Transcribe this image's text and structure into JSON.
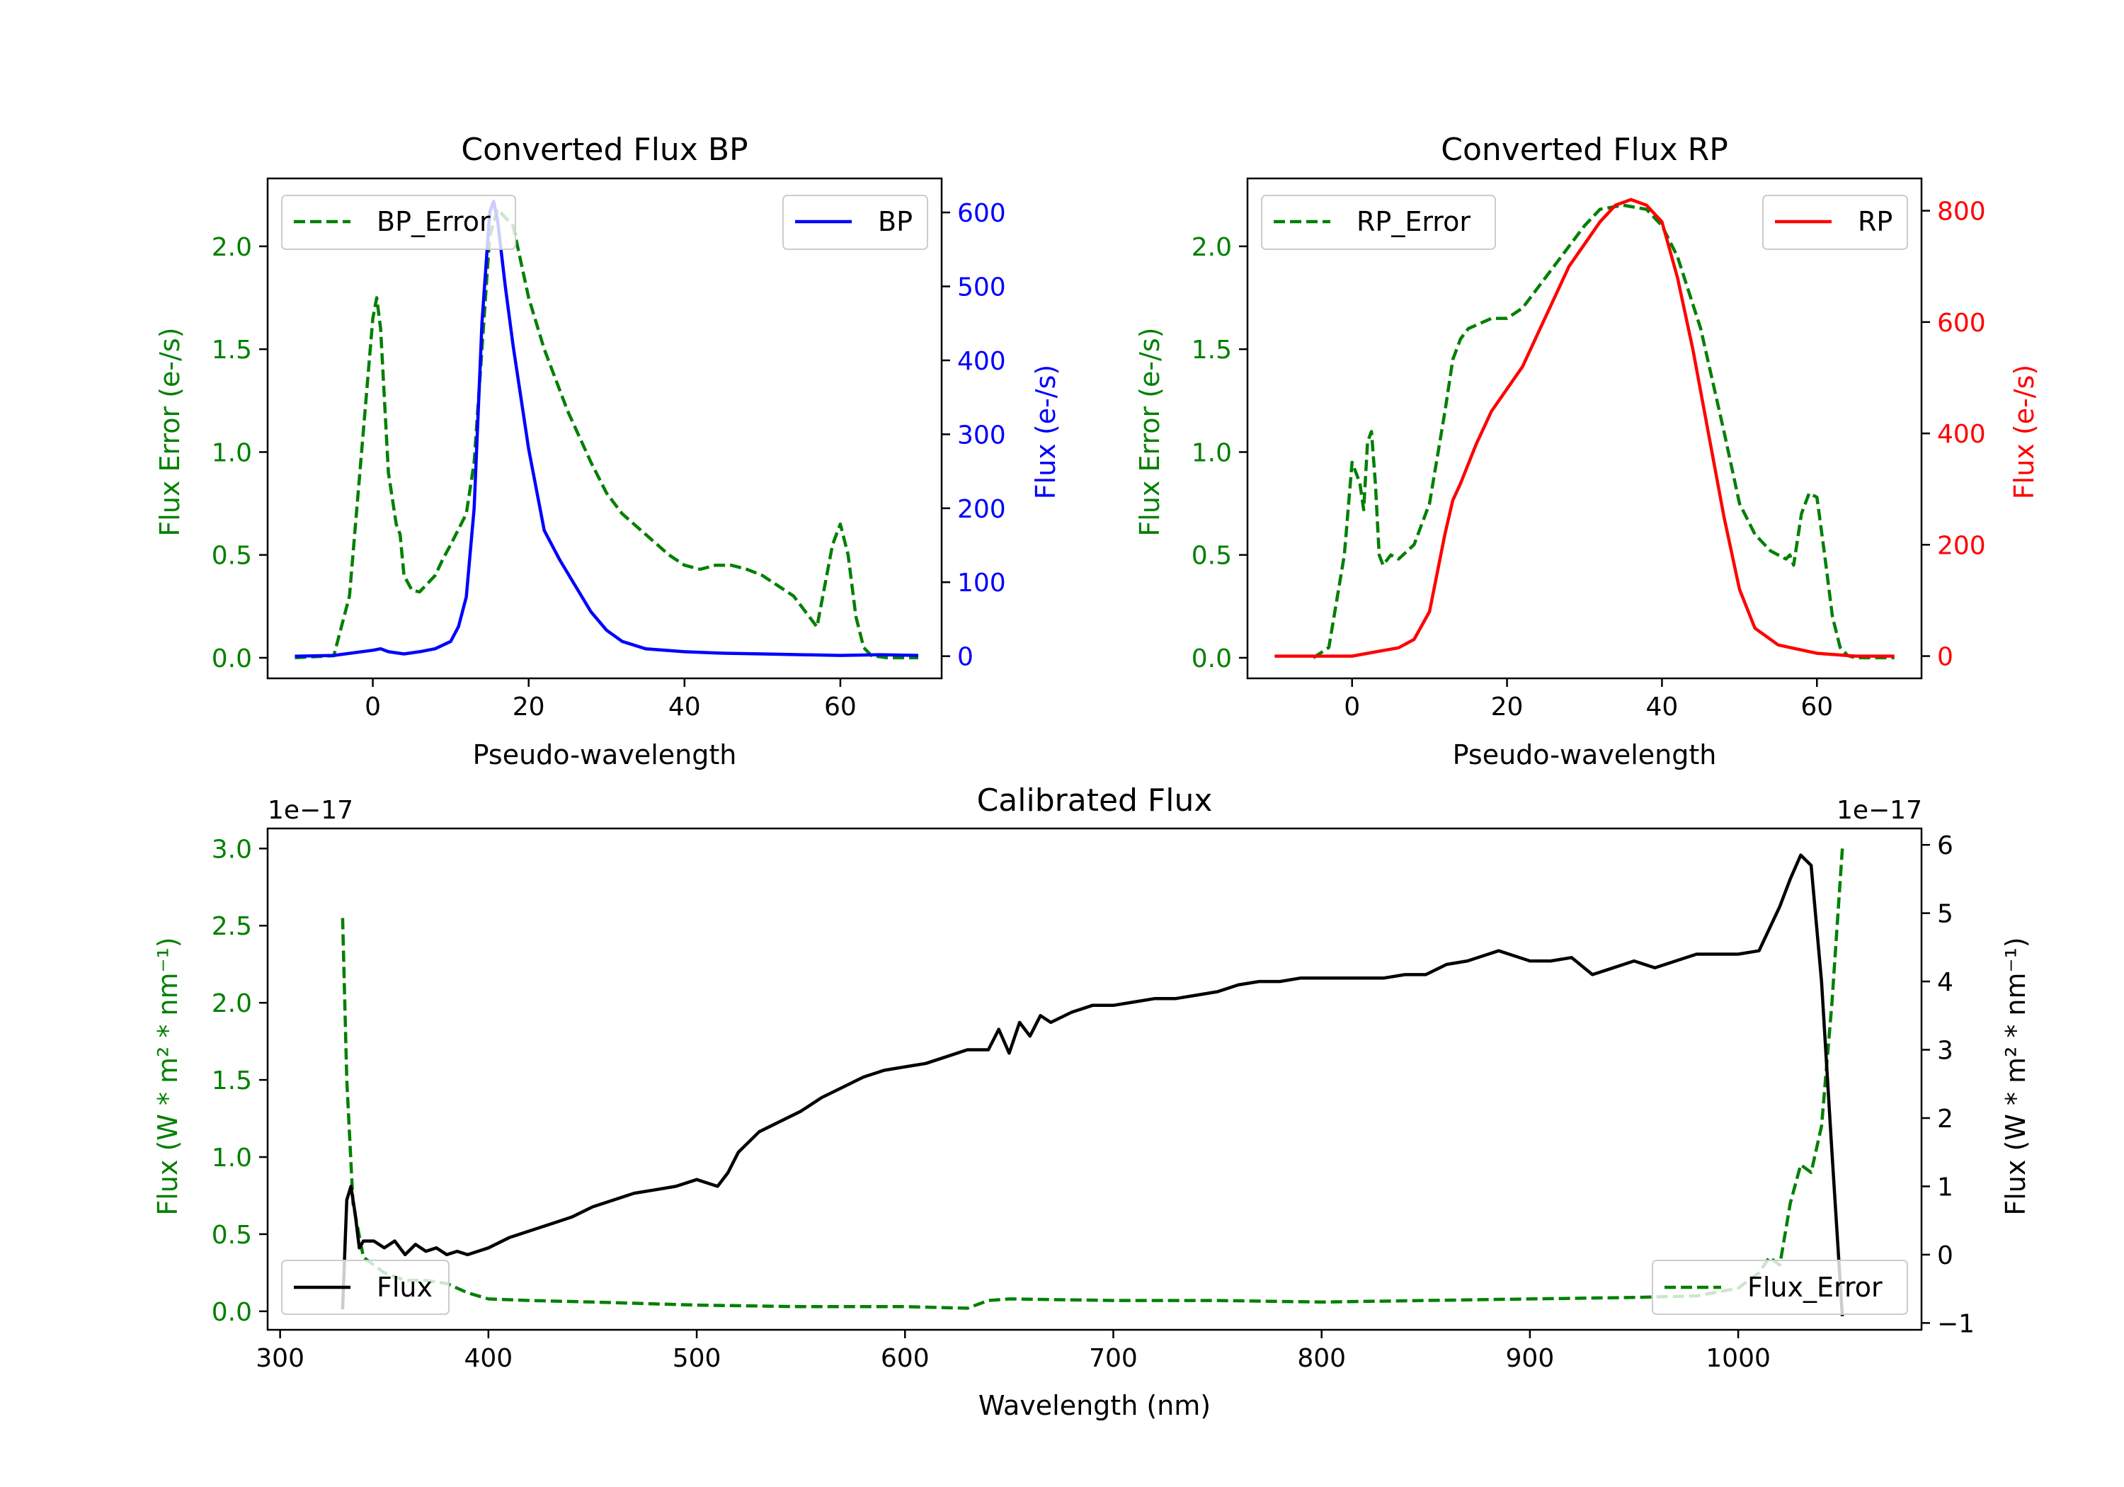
{
  "colors": {
    "green": "#008000",
    "blue": "#0000ff",
    "red": "#ff0000",
    "black": "#000000"
  },
  "chart_data": [
    {
      "type": "line",
      "title": "Converted Flux BP",
      "xlabel": "Pseudo-wavelength",
      "ylabel_left": "Flux Error (e-/s)",
      "ylabel_right": "Flux (e-/s)",
      "xlim": [
        -13.5,
        73
      ],
      "ylim_left": [
        -0.1,
        2.33
      ],
      "ylim_right": [
        -30,
        646
      ],
      "xticks": [
        0,
        20,
        40,
        60
      ],
      "xtick_labels": [
        "0",
        "20",
        "40",
        "60"
      ],
      "yticks_left": [
        0.0,
        0.5,
        1.0,
        1.5,
        2.0
      ],
      "ytick_labels_left": [
        "0.0",
        "0.5",
        "1.0",
        "1.5",
        "2.0"
      ],
      "yticks_right": [
        0,
        100,
        200,
        300,
        400,
        500,
        600
      ],
      "ytick_labels_right": [
        "0",
        "100",
        "200",
        "300",
        "400",
        "500",
        "600"
      ],
      "series": [
        {
          "name": "BP_Error",
          "axis": "left",
          "style": "dashed",
          "color": "#008000",
          "x": [
            -10,
            -5,
            -3,
            -1,
            0,
            0.5,
            1,
            2,
            3,
            3.5,
            4,
            5,
            6,
            8,
            9,
            10,
            12,
            13,
            14,
            15,
            16,
            18,
            20,
            22,
            25,
            28,
            30,
            32,
            35,
            38,
            40,
            42,
            44,
            46,
            48,
            50,
            52,
            54,
            56,
            57,
            58,
            59,
            60,
            61,
            62,
            63,
            64,
            66,
            70
          ],
          "y": [
            0.0,
            0.01,
            0.3,
            1.2,
            1.65,
            1.75,
            1.6,
            0.9,
            0.65,
            0.6,
            0.4,
            0.33,
            0.32,
            0.4,
            0.48,
            0.55,
            0.7,
            0.95,
            1.5,
            2.05,
            2.18,
            2.1,
            1.75,
            1.5,
            1.2,
            0.95,
            0.8,
            0.7,
            0.6,
            0.5,
            0.45,
            0.43,
            0.45,
            0.45,
            0.43,
            0.4,
            0.35,
            0.3,
            0.2,
            0.15,
            0.35,
            0.55,
            0.65,
            0.5,
            0.2,
            0.05,
            0.01,
            0.0,
            0.0
          ]
        },
        {
          "name": "BP",
          "axis": "right",
          "style": "solid",
          "color": "#0000ff",
          "x": [
            -10,
            -5,
            0,
            1,
            2,
            4,
            6,
            8,
            10,
            11,
            12,
            13,
            14,
            15,
            15.5,
            16,
            17,
            18,
            20,
            22,
            24,
            26,
            28,
            30,
            32,
            35,
            40,
            45,
            50,
            55,
            60,
            65,
            70
          ],
          "y": [
            0,
            1,
            8,
            10,
            6,
            3,
            6,
            10,
            20,
            40,
            80,
            200,
            450,
            600,
            615,
            590,
            500,
            420,
            280,
            170,
            130,
            95,
            60,
            35,
            20,
            10,
            6,
            4,
            3,
            2,
            1,
            2,
            1
          ]
        }
      ]
    },
    {
      "type": "line",
      "title": "Converted Flux RP",
      "xlabel": "Pseudo-wavelength",
      "ylabel_left": "Flux Error (e-/s)",
      "ylabel_right": "Flux (e-/s)",
      "xlim": [
        -13.5,
        73.5
      ],
      "ylim_left": [
        -0.1,
        2.33
      ],
      "ylim_right": [
        -40,
        858
      ],
      "xticks": [
        0,
        20,
        40,
        60
      ],
      "xtick_labels": [
        "0",
        "20",
        "40",
        "60"
      ],
      "yticks_left": [
        0.0,
        0.5,
        1.0,
        1.5,
        2.0
      ],
      "ytick_labels_left": [
        "0.0",
        "0.5",
        "1.0",
        "1.5",
        "2.0"
      ],
      "yticks_right": [
        0,
        200,
        400,
        600,
        800
      ],
      "ytick_labels_right": [
        "0",
        "200",
        "400",
        "600",
        "800"
      ],
      "series": [
        {
          "name": "RP_Error",
          "axis": "left",
          "style": "dashed",
          "color": "#008000",
          "x": [
            -5,
            -3,
            -1,
            0,
            1,
            1.5,
            2,
            2.5,
            3,
            3.5,
            4,
            5,
            6,
            8,
            10,
            12,
            13,
            14,
            15,
            18,
            20,
            22,
            25,
            28,
            30,
            32,
            35,
            38,
            40,
            42,
            45,
            48,
            50,
            52,
            54,
            55,
            56,
            56.5,
            57,
            58,
            59,
            60,
            61,
            62,
            63,
            64,
            65,
            67,
            70
          ],
          "y": [
            0.0,
            0.05,
            0.5,
            0.95,
            0.85,
            0.72,
            1.05,
            1.1,
            0.85,
            0.5,
            0.45,
            0.5,
            0.48,
            0.55,
            0.75,
            1.2,
            1.45,
            1.55,
            1.6,
            1.65,
            1.65,
            1.7,
            1.85,
            2.0,
            2.1,
            2.18,
            2.2,
            2.18,
            2.1,
            1.95,
            1.6,
            1.1,
            0.75,
            0.6,
            0.52,
            0.5,
            0.48,
            0.5,
            0.45,
            0.7,
            0.8,
            0.78,
            0.5,
            0.2,
            0.05,
            0.01,
            0.0,
            0.0,
            0.0
          ]
        },
        {
          "name": "RP",
          "axis": "right",
          "style": "solid",
          "color": "#ff0000",
          "x": [
            -10,
            -5,
            0,
            2,
            4,
            6,
            8,
            10,
            12,
            13,
            14,
            16,
            18,
            20,
            22,
            24,
            26,
            28,
            30,
            32,
            34,
            36,
            38,
            40,
            42,
            44,
            46,
            48,
            50,
            52,
            55,
            60,
            65,
            70
          ],
          "y": [
            0,
            0,
            0,
            5,
            10,
            15,
            30,
            80,
            220,
            280,
            310,
            380,
            440,
            480,
            520,
            580,
            640,
            700,
            740,
            780,
            810,
            820,
            810,
            780,
            680,
            550,
            400,
            250,
            120,
            50,
            20,
            5,
            0,
            0
          ]
        }
      ]
    },
    {
      "type": "line",
      "title": "Calibrated Flux",
      "xlabel": "Wavelength (nm)",
      "ylabel_left": "Flux (W * m² * nm⁻¹)",
      "ylabel_right": "Flux (W * m² * nm⁻¹)",
      "offset_left": "1e−17",
      "offset_right": "1e−17",
      "xlim": [
        294,
        1088
      ],
      "ylim_left": [
        -0.12,
        3.13
      ],
      "ylim_right": [
        -1.1,
        6.24
      ],
      "xticks": [
        300,
        400,
        500,
        600,
        700,
        800,
        900,
        1000
      ],
      "xtick_labels": [
        "300",
        "400",
        "500",
        "600",
        "700",
        "800",
        "900",
        "1000"
      ],
      "yticks_left": [
        0.0,
        0.5,
        1.0,
        1.5,
        2.0,
        2.5,
        3.0
      ],
      "ytick_labels_left": [
        "0.0",
        "0.5",
        "1.0",
        "1.5",
        "2.0",
        "2.5",
        "3.0"
      ],
      "yticks_right": [
        -1,
        0,
        1,
        2,
        3,
        4,
        5,
        6
      ],
      "ytick_labels_right": [
        "−1",
        "0",
        "1",
        "2",
        "3",
        "4",
        "5",
        "6"
      ],
      "series": [
        {
          "name": "Flux_Error",
          "axis": "left",
          "style": "dashed",
          "color": "#008000",
          "x": [
            330,
            332,
            335,
            340,
            350,
            360,
            370,
            380,
            390,
            400,
            420,
            450,
            500,
            550,
            600,
            630,
            640,
            650,
            700,
            750,
            800,
            850,
            900,
            950,
            980,
            1000,
            1010,
            1015,
            1020,
            1025,
            1030,
            1035,
            1040,
            1045,
            1050
          ],
          "y": [
            2.55,
            1.5,
            0.7,
            0.35,
            0.25,
            0.2,
            0.2,
            0.18,
            0.12,
            0.08,
            0.07,
            0.06,
            0.04,
            0.03,
            0.03,
            0.02,
            0.07,
            0.08,
            0.07,
            0.07,
            0.06,
            0.07,
            0.08,
            0.09,
            0.1,
            0.15,
            0.25,
            0.35,
            0.3,
            0.7,
            0.95,
            0.9,
            1.2,
            2.0,
            3.0
          ]
        },
        {
          "name": "Flux",
          "axis": "right",
          "style": "solid",
          "color": "#000000",
          "x": [
            330,
            332,
            334,
            336,
            338,
            340,
            345,
            350,
            355,
            360,
            365,
            370,
            375,
            380,
            385,
            390,
            395,
            400,
            410,
            420,
            430,
            440,
            450,
            460,
            470,
            480,
            490,
            500,
            505,
            510,
            515,
            520,
            530,
            540,
            550,
            560,
            570,
            580,
            590,
            600,
            610,
            620,
            630,
            640,
            645,
            650,
            655,
            660,
            665,
            670,
            680,
            690,
            700,
            710,
            720,
            730,
            740,
            750,
            760,
            770,
            780,
            790,
            800,
            810,
            820,
            830,
            840,
            850,
            860,
            870,
            880,
            885,
            890,
            900,
            910,
            920,
            930,
            940,
            950,
            960,
            970,
            980,
            990,
            1000,
            1010,
            1020,
            1025,
            1030,
            1035,
            1040,
            1045,
            1050
          ],
          "y": [
            -0.8,
            0.8,
            1.0,
            0.6,
            0.1,
            0.2,
            0.2,
            0.1,
            0.2,
            0.0,
            0.15,
            0.05,
            0.1,
            0.0,
            0.05,
            0.0,
            0.05,
            0.1,
            0.25,
            0.35,
            0.45,
            0.55,
            0.7,
            0.8,
            0.9,
            0.95,
            1.0,
            1.1,
            1.05,
            1.0,
            1.2,
            1.5,
            1.8,
            1.95,
            2.1,
            2.3,
            2.45,
            2.6,
            2.7,
            2.75,
            2.8,
            2.9,
            3.0,
            3.0,
            3.3,
            2.95,
            3.4,
            3.2,
            3.5,
            3.4,
            3.55,
            3.65,
            3.65,
            3.7,
            3.75,
            3.75,
            3.8,
            3.85,
            3.95,
            4.0,
            4.0,
            4.05,
            4.05,
            4.05,
            4.05,
            4.05,
            4.1,
            4.1,
            4.25,
            4.3,
            4.4,
            4.45,
            4.4,
            4.3,
            4.3,
            4.35,
            4.1,
            4.2,
            4.3,
            4.2,
            4.3,
            4.4,
            4.4,
            4.4,
            4.45,
            5.1,
            5.5,
            5.85,
            5.7,
            4.0,
            1.5,
            -0.9
          ]
        }
      ]
    }
  ]
}
